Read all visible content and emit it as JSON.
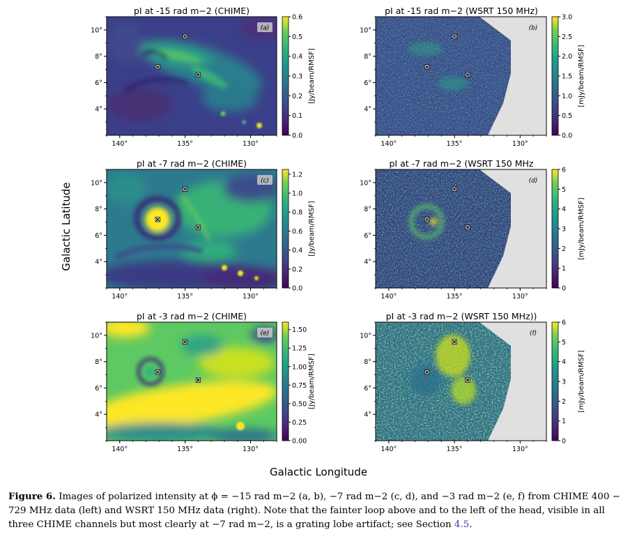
{
  "figure": {
    "ylabel": "Galactic Latitude",
    "xlabel": "Galactic Longitude",
    "colors": {
      "frame": "#000000",
      "mask": "#e0e0e0"
    }
  },
  "caption": {
    "label": "Figure 6.",
    "text": "Images of polarized intensity at ϕ = −15 rad m−2 (a, b), −7 rad m−2 (c, d), and −3 rad m−2 (e, f) from CHIME 400 − 729 MHz data (left) and WSRT 150 MHz data (right). Note that the fainter loop above and to the left of the head, visible in all three CHIME channels but most clearly at −7 rad m−2, is a grating lobe artifact; see Section",
    "section_ref": "4.5",
    "end": "."
  },
  "chart_data": [
    {
      "type": "heatmap",
      "id": "a",
      "title": "pI at -15 rad m−2 (CHIME)",
      "panel_label": "(a)",
      "xticks": [
        "140°",
        "135°",
        "130°"
      ],
      "yticks": [
        "10°",
        "8°",
        "6°",
        "4°"
      ],
      "xlim": [
        141,
        128
      ],
      "ylim": [
        2,
        11
      ],
      "colorbar": {
        "label": "[Jy/beam/RMSF]",
        "ticks": [
          "0.0",
          "0.1",
          "0.2",
          "0.3",
          "0.4",
          "0.5",
          "0.6"
        ],
        "range": [
          0,
          0.6
        ]
      },
      "markers": [
        {
          "l": 135.0,
          "b": 9.5
        },
        {
          "l": 137.1,
          "b": 7.2
        },
        {
          "l": 134.0,
          "b": 6.6
        }
      ]
    },
    {
      "type": "heatmap",
      "id": "b",
      "title": "pI at -15 rad m−2 (WSRT 150 MHz)",
      "panel_label": "(b)",
      "xticks": [
        "140°",
        "135°",
        "130°"
      ],
      "yticks": [
        "10°",
        "8°",
        "6°",
        "4°"
      ],
      "xlim": [
        141,
        128
      ],
      "ylim": [
        2,
        11
      ],
      "colorbar": {
        "label": "[mJy/beam/RMSF]",
        "ticks": [
          "0.0",
          "0.5",
          "1.0",
          "1.5",
          "2.0",
          "2.5",
          "3.0"
        ],
        "range": [
          0,
          3
        ]
      },
      "markers": [
        {
          "l": 135.0,
          "b": 9.5
        },
        {
          "l": 137.1,
          "b": 7.2
        },
        {
          "l": 134.0,
          "b": 6.6
        }
      ]
    },
    {
      "type": "heatmap",
      "id": "c",
      "title": "pI at -7 rad m−2 (CHIME)",
      "panel_label": "(c)",
      "xticks": [
        "140°",
        "135°",
        "130°"
      ],
      "yticks": [
        "10°",
        "8°",
        "6°",
        "4°"
      ],
      "xlim": [
        141,
        128
      ],
      "ylim": [
        2,
        11
      ],
      "colorbar": {
        "label": "[Jy/beam/RMSF]",
        "ticks": [
          "0.0",
          "0.2",
          "0.4",
          "0.6",
          "0.8",
          "1.0",
          "1.2"
        ],
        "range": [
          0,
          1.25
        ]
      },
      "markers": [
        {
          "l": 135.0,
          "b": 9.5
        },
        {
          "l": 137.1,
          "b": 7.2
        },
        {
          "l": 134.0,
          "b": 6.6
        }
      ]
    },
    {
      "type": "heatmap",
      "id": "d",
      "title": "pI at -7 rad m−2 (WSRT 150 MHz",
      "panel_label": "(d)",
      "xticks": [
        "140°",
        "135°",
        "130°"
      ],
      "yticks": [
        "10°",
        "8°",
        "6°",
        "4°"
      ],
      "xlim": [
        141,
        128
      ],
      "ylim": [
        2,
        11
      ],
      "colorbar": {
        "label": "[mJy/beam/RMSF]",
        "ticks": [
          "0",
          "1",
          "2",
          "3",
          "4",
          "5",
          "6"
        ],
        "range": [
          0,
          6
        ]
      },
      "markers": [
        {
          "l": 135.0,
          "b": 9.5
        },
        {
          "l": 137.1,
          "b": 7.2
        },
        {
          "l": 134.0,
          "b": 6.6
        }
      ]
    },
    {
      "type": "heatmap",
      "id": "e",
      "title": "pI at -3 rad m−2 (CHIME)",
      "panel_label": "(e)",
      "xticks": [
        "140°",
        "135°",
        "130°"
      ],
      "yticks": [
        "10°",
        "8°",
        "6°",
        "4°"
      ],
      "xlim": [
        141,
        128
      ],
      "ylim": [
        2,
        11
      ],
      "colorbar": {
        "label": "[Jy/beam/RMSF]",
        "ticks": [
          "0.00",
          "0.25",
          "0.50",
          "0.75",
          "1.00",
          "1.25",
          "1.50"
        ],
        "range": [
          0,
          1.6
        ]
      },
      "markers": [
        {
          "l": 135.0,
          "b": 9.5
        },
        {
          "l": 137.1,
          "b": 7.2
        },
        {
          "l": 134.0,
          "b": 6.6
        }
      ]
    },
    {
      "type": "heatmap",
      "id": "f",
      "title": "pI at -3 rad m−2 (WSRT 150 MHz))",
      "panel_label": "(f)",
      "xticks": [
        "140°",
        "135°",
        "130°"
      ],
      "yticks": [
        "10°",
        "8°",
        "6°",
        "4°"
      ],
      "xlim": [
        141,
        128
      ],
      "ylim": [
        2,
        11
      ],
      "colorbar": {
        "label": "[mJy/beam/RMSF]",
        "ticks": [
          "0",
          "1",
          "2",
          "3",
          "4",
          "5",
          "6"
        ],
        "range": [
          0,
          6
        ]
      },
      "markers": [
        {
          "l": 135.0,
          "b": 9.5
        },
        {
          "l": 137.1,
          "b": 7.2
        },
        {
          "l": 134.0,
          "b": 6.6
        }
      ]
    }
  ]
}
